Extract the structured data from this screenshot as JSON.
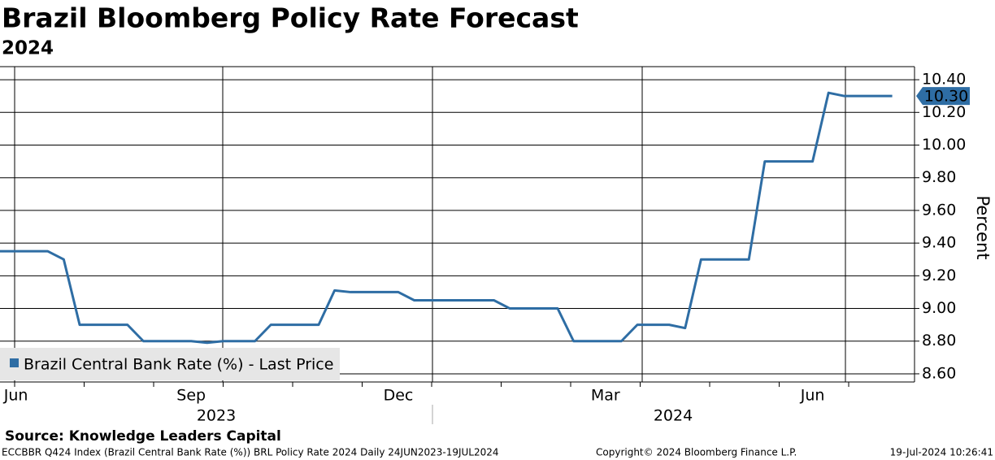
{
  "chart_data": {
    "type": "line",
    "title": "Brazil Bloomberg Policy Rate Forecast",
    "subtitle": "2024",
    "y_label": "Percent",
    "categories": [
      null,
      "Jun",
      null,
      null,
      null,
      null,
      null,
      null,
      null,
      null,
      null,
      null,
      "Sep",
      null,
      null,
      null,
      null,
      null,
      null,
      null,
      null,
      null,
      null,
      null,
      null,
      "Dec",
      null,
      null,
      null,
      null,
      null,
      null,
      null,
      null,
      null,
      null,
      null,
      null,
      "Mar",
      null,
      null,
      null,
      null,
      null,
      null,
      null,
      null,
      null,
      null,
      null,
      null,
      "Jun",
      null,
      null,
      null,
      null,
      null
    ],
    "year_labels": [
      "2023",
      "2024"
    ],
    "series": [
      {
        "name": "Brazil Central Bank Rate (%) - Last Price",
        "color": "#2e6da4",
        "values": [
          9.35,
          9.35,
          9.35,
          9.35,
          9.3,
          8.9,
          8.9,
          8.9,
          8.9,
          8.8,
          8.8,
          8.8,
          8.8,
          8.79,
          8.8,
          8.8,
          8.8,
          8.9,
          8.9,
          8.9,
          8.9,
          9.11,
          9.1,
          9.1,
          9.1,
          9.1,
          9.05,
          9.05,
          9.05,
          9.05,
          9.05,
          9.05,
          9.0,
          9.0,
          9.0,
          9.0,
          8.8,
          8.8,
          8.8,
          8.8,
          8.9,
          8.9,
          8.9,
          8.88,
          9.3,
          9.3,
          9.3,
          9.3,
          9.9,
          9.9,
          9.9,
          9.9,
          10.32,
          10.3,
          10.3,
          10.3,
          10.3
        ]
      }
    ],
    "last_price_label": "10.30",
    "ylim": [
      8.55,
      10.48
    ],
    "yticks": [
      {
        "value": 8.6,
        "label": "8.60"
      },
      {
        "value": 8.8,
        "label": "8.80"
      },
      {
        "value": 9.0,
        "label": "9.00"
      },
      {
        "value": 9.2,
        "label": "9.20"
      },
      {
        "value": 9.4,
        "label": "9.40"
      },
      {
        "value": 9.6,
        "label": "9.60"
      },
      {
        "value": 9.8,
        "label": "9.80"
      },
      {
        "value": 10.0,
        "label": "10.00"
      },
      {
        "value": 10.2,
        "label": "10.20"
      },
      {
        "value": 10.4,
        "label": "10.40"
      }
    ],
    "grid": true,
    "legend": "lower left",
    "source": "Source: Knowledge Leaders Capital",
    "footer": {
      "left": "ECCBBR Q424 Index (Brazil Central Bank Rate (%)) BRL Policy Rate 2024  Daily 24JUN2023-19JUL2024",
      "center": "Copyright© 2024 Bloomberg Finance L.P.",
      "right": "19-Jul-2024 10:26:41"
    }
  }
}
